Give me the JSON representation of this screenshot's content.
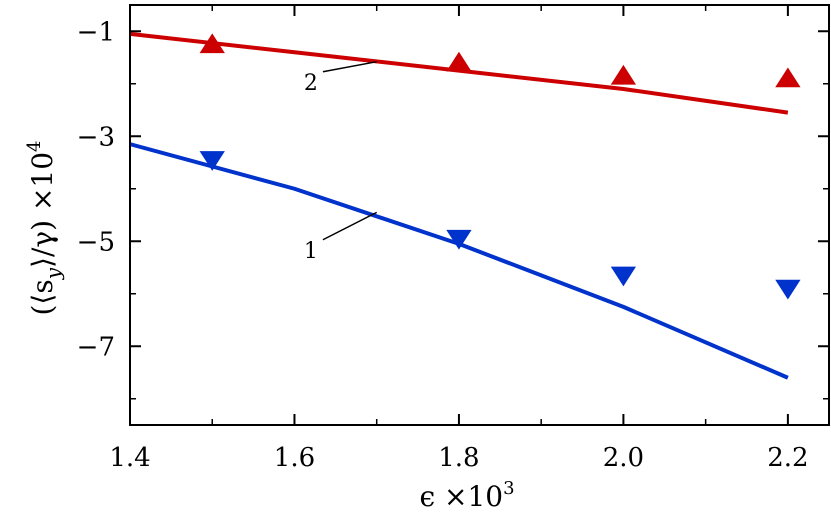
{
  "chart_data": {
    "type": "line",
    "title": "",
    "xlabel": "ϵ ×10",
    "xlabel_exp": "3",
    "ylabel": "(⟨s",
    "ylabel_sub": "y",
    "ylabel_mid": "⟩/γ) ×10",
    "ylabel_exp": "4",
    "xlim": [
      1.4,
      2.25
    ],
    "ylim": [
      -8.5,
      -0.5
    ],
    "xticks": [
      1.4,
      1.6,
      1.8,
      2.0,
      2.2
    ],
    "xtick_labels": [
      "1.4",
      "1.6",
      "1.8",
      "2.0",
      "2.2"
    ],
    "yticks": [
      -1,
      -3,
      -5,
      -7
    ],
    "ytick_labels": [
      "−1",
      "−3",
      "−5",
      "−7"
    ],
    "grid": false,
    "series": [
      {
        "name": "2",
        "color": "#cc0000",
        "line": {
          "x": [
            1.4,
            1.6,
            1.8,
            2.0,
            2.2
          ],
          "y": [
            -1.05,
            -1.4,
            -1.75,
            -2.1,
            -2.55
          ]
        },
        "markers": {
          "symbol": "triangle-up",
          "x": [
            1.5,
            1.8,
            2.0,
            2.2
          ],
          "y": [
            -1.25,
            -1.6,
            -1.85,
            -1.9
          ]
        }
      },
      {
        "name": "1",
        "color": "#0033cc",
        "line": {
          "x": [
            1.4,
            1.6,
            1.8,
            2.0,
            2.2
          ],
          "y": [
            -3.15,
            -4.0,
            -5.05,
            -6.25,
            -7.6
          ]
        },
        "markers": {
          "symbol": "triangle-down",
          "x": [
            1.5,
            1.8,
            2.0,
            2.2
          ],
          "y": [
            -3.45,
            -4.95,
            -5.65,
            -5.9
          ]
        }
      }
    ],
    "annotations": [
      {
        "text": "2",
        "series": "2",
        "point": [
          1.7,
          -1.58
        ],
        "label_at": [
          1.62,
          -2.0
        ]
      },
      {
        "text": "1",
        "series": "1",
        "point": [
          1.7,
          -4.45
        ],
        "label_at": [
          1.62,
          -5.2
        ]
      }
    ]
  }
}
